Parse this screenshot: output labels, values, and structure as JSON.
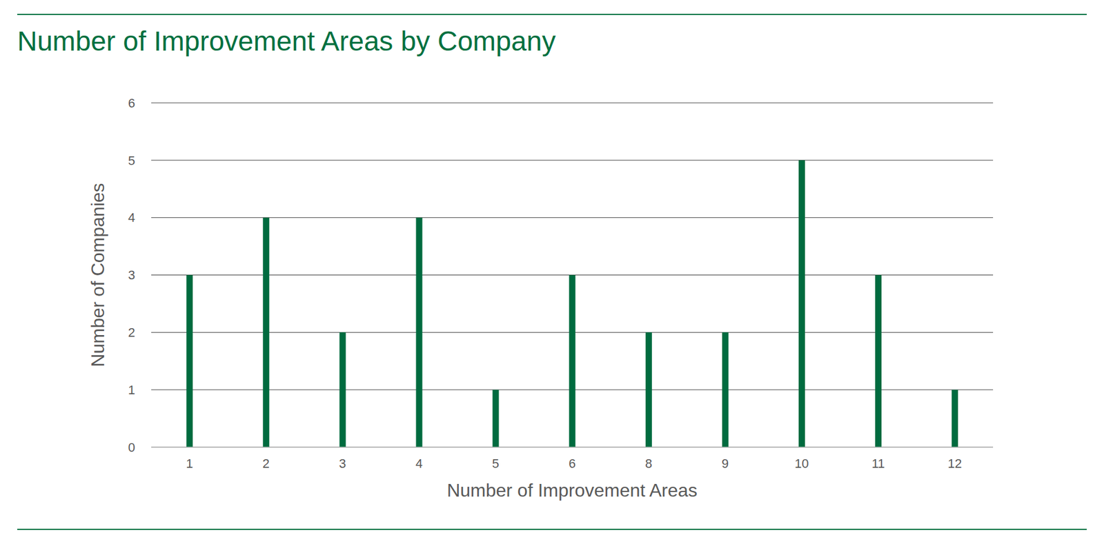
{
  "chart_data": {
    "type": "bar",
    "title": "Number of Improvement Areas by Company",
    "x_label": "Number of Improvement Areas",
    "y_label": "Number of Companies",
    "categories": [
      "1",
      "2",
      "3",
      "4",
      "5",
      "6",
      "8",
      "9",
      "10",
      "11",
      "12"
    ],
    "values": [
      3,
      4,
      2,
      4,
      1,
      3,
      2,
      2,
      5,
      3,
      1
    ],
    "color": "#006b3f",
    "ylim": [
      0,
      6
    ],
    "yticks": [
      0,
      1,
      2,
      3,
      4,
      5,
      6
    ],
    "grid": true
  }
}
